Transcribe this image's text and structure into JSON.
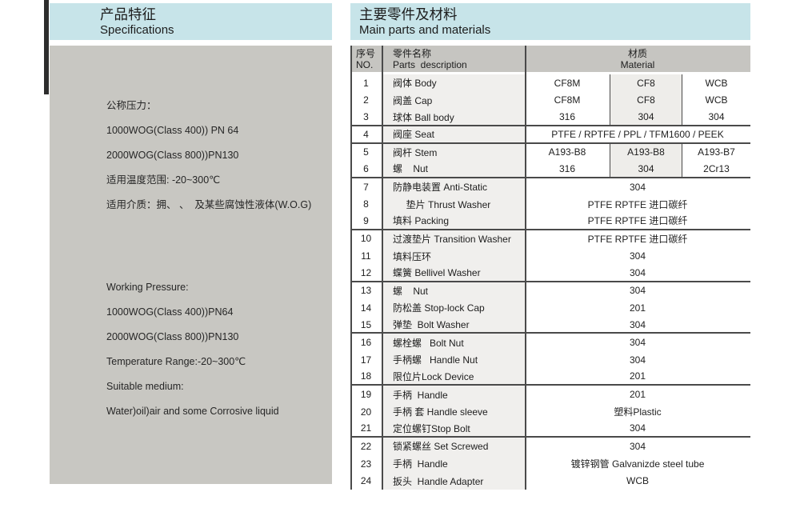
{
  "colors": {
    "header_blue": "#c7e4e9",
    "panel_gray": "#c8c7c2",
    "table_header_gray": "#c6c5c1",
    "row_tint": "#f0efed",
    "rule_dark": "#4a4a4a"
  },
  "left_panel": {
    "title_cn": "产品特征",
    "title_en": "Specifications",
    "lines_cn": [
      "公称压力：",
      "1000WOG(Class 400)) PN 64",
      "2000WOG(Class 800))PN130",
      "适用温度范围: -20~300℃",
      "适用介质：拥、 、  及某些腐蚀性液体(W.O.G)"
    ],
    "lines_en": [
      "Working Pressure:",
      "1000WOG(Class 400))PN64",
      "2000WOG(Class 800))PN130",
      "Temperature Range:-20~300℃",
      "Suitable medium:",
      "Water)oil)air and some Corrosive liquid"
    ]
  },
  "right_panel": {
    "title_cn": "主要零件及材料",
    "title_en": "Main parts and materials",
    "table": {
      "headers": {
        "no_cn": "序号",
        "no_en": "NO.",
        "parts_cn": "零件名称",
        "parts_en": "Parts  description",
        "material_cn": "材质",
        "material_en": "Material"
      },
      "rows": [
        {
          "no": "1",
          "name": "阀体 Body",
          "materials": [
            "CF8M",
            "CF8",
            "WCB"
          ],
          "group_end": false
        },
        {
          "no": "2",
          "name": "阀盖 Cap",
          "materials": [
            "CF8M",
            "CF8",
            "WCB"
          ],
          "group_end": false
        },
        {
          "no": "3",
          "name": "球体 Ball body",
          "materials": [
            "316",
            "304",
            "304"
          ],
          "group_end": true
        },
        {
          "no": "4",
          "name": "阀座 Seat",
          "materials": [
            "PTFE / RPTFE / PPL / TFM1600 / PEEK"
          ],
          "group_end": true
        },
        {
          "no": "5",
          "name": "阀杆 Stem",
          "materials": [
            "A193-B8",
            "A193-B8",
            "A193-B7"
          ],
          "group_end": false
        },
        {
          "no": "6",
          "name": "螺    Nut",
          "materials": [
            "316",
            "304",
            "2Cr13"
          ],
          "group_end": true
        },
        {
          "no": "7",
          "name": "防静电装置 Anti-Static",
          "materials": [
            "304"
          ],
          "group_end": false
        },
        {
          "no": "8",
          "name": "     垫片 Thrust Washer",
          "materials": [
            "PTFE RPTFE 进口碳纤"
          ],
          "group_end": false
        },
        {
          "no": "9",
          "name": "填料 Packing",
          "materials": [
            "PTFE RPTFE 进口碳纤"
          ],
          "group_end": true
        },
        {
          "no": "10",
          "name": "过渡垫片 Transition Washer",
          "materials": [
            "PTFE RPTFE 进口碳纤"
          ],
          "group_end": false
        },
        {
          "no": "11",
          "name": "填料压环",
          "materials": [
            "304"
          ],
          "group_end": false
        },
        {
          "no": "12",
          "name": "蝶簧 Bellivel Washer",
          "materials": [
            "304"
          ],
          "group_end": true
        },
        {
          "no": "13",
          "name": "螺    Nut",
          "materials": [
            "304"
          ],
          "group_end": false
        },
        {
          "no": "14",
          "name": "防松盖 Stop-lock Cap",
          "materials": [
            "201"
          ],
          "group_end": false
        },
        {
          "no": "15",
          "name": "弹垫  Bolt Washer",
          "materials": [
            "304"
          ],
          "group_end": true
        },
        {
          "no": "16",
          "name": "螺栓螺   Bolt Nut",
          "materials": [
            "304"
          ],
          "group_end": false
        },
        {
          "no": "17",
          "name": "手柄螺   Handle Nut",
          "materials": [
            "304"
          ],
          "group_end": false
        },
        {
          "no": "18",
          "name": "限位片Lock Device",
          "materials": [
            "201"
          ],
          "group_end": true
        },
        {
          "no": "19",
          "name": "手柄  Handle",
          "materials": [
            "201"
          ],
          "group_end": false
        },
        {
          "no": "20",
          "name": "手柄 套 Handle sleeve",
          "materials": [
            "塑料Plastic"
          ],
          "group_end": false
        },
        {
          "no": "21",
          "name": "定位螺钉Stop Bolt",
          "materials": [
            "304"
          ],
          "group_end": true
        },
        {
          "no": "22",
          "name": "锁紧螺丝 Set Screwed",
          "materials": [
            "304"
          ],
          "group_end": false
        },
        {
          "no": "23",
          "name": "手柄  Handle",
          "materials": [
            "镀锌钢管 Galvanizde steel tube"
          ],
          "group_end": false
        },
        {
          "no": "24",
          "name": "扳头  Handle Adapter",
          "materials": [
            "WCB"
          ],
          "group_end": false
        }
      ]
    }
  }
}
